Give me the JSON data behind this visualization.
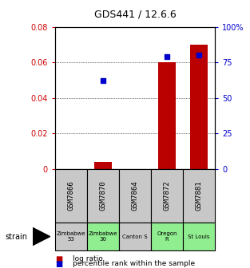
{
  "title": "GDS441 / 12.6.6",
  "samples": [
    "GSM7866",
    "GSM7870",
    "GSM7864",
    "GSM7872",
    "GSM7881"
  ],
  "strains": [
    "Zimbabwe\n53",
    "Zimbabwe\n30",
    "Canton S",
    "Oregon\nR",
    "St Louis"
  ],
  "strain_colors": [
    "#c8c8c8",
    "#90ee90",
    "#c8c8c8",
    "#90ee90",
    "#90ee90"
  ],
  "gsm_bg_color": "#c8c8c8",
  "log_ratios": [
    0.0,
    0.004,
    0.0,
    0.06,
    0.07
  ],
  "percentile_ranks": [
    null,
    62,
    null,
    79,
    80
  ],
  "bar_color": "#bb0000",
  "dot_color": "#0000cc",
  "ylim_left": [
    0,
    0.08
  ],
  "ylim_right": [
    0,
    100
  ],
  "yticks_left": [
    0,
    0.02,
    0.04,
    0.06,
    0.08
  ],
  "yticks_right": [
    0,
    25,
    50,
    75,
    100
  ],
  "ytick_labels_left": [
    "0",
    "0.02",
    "0.04",
    "0.06",
    "0.08"
  ],
  "ytick_labels_right": [
    "0",
    "25",
    "50",
    "75",
    "100%"
  ],
  "left_tick_color": "#cc0000",
  "right_tick_color": "#0000cc",
  "bg_color": "#ffffff",
  "bar_width": 0.55,
  "legend_red_label": "log ratio",
  "legend_blue_label": "percentile rank within the sample",
  "strain_label": "strain"
}
